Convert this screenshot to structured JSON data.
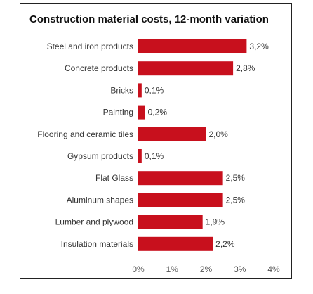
{
  "chart_data": {
    "type": "bar",
    "orientation": "horizontal",
    "title": "Construction material costs, 12-month variation",
    "categories": [
      "Steel and iron products",
      "Concrete products",
      "Bricks",
      "Painting",
      "Flooring and ceramic tiles",
      "Gypsum products",
      "Flat Glass",
      "Aluminum shapes",
      "Lumber and plywood",
      "Insulation materials"
    ],
    "values": [
      3.2,
      2.8,
      0.1,
      0.2,
      2.0,
      0.1,
      2.5,
      2.5,
      1.9,
      2.2
    ],
    "value_labels": [
      "3,2%",
      "2,8%",
      "0,1%",
      "0,2%",
      "2,0%",
      "0,1%",
      "2,5%",
      "2,5%",
      "1,9%",
      "2,2%"
    ],
    "xlim": [
      0,
      4
    ],
    "xticks": [
      0,
      1,
      2,
      3,
      4
    ],
    "xtick_labels": [
      "0%",
      "1%",
      "2%",
      "3%",
      "4%"
    ],
    "grid": false,
    "legend": "none",
    "bar_color": "#c8101d"
  }
}
